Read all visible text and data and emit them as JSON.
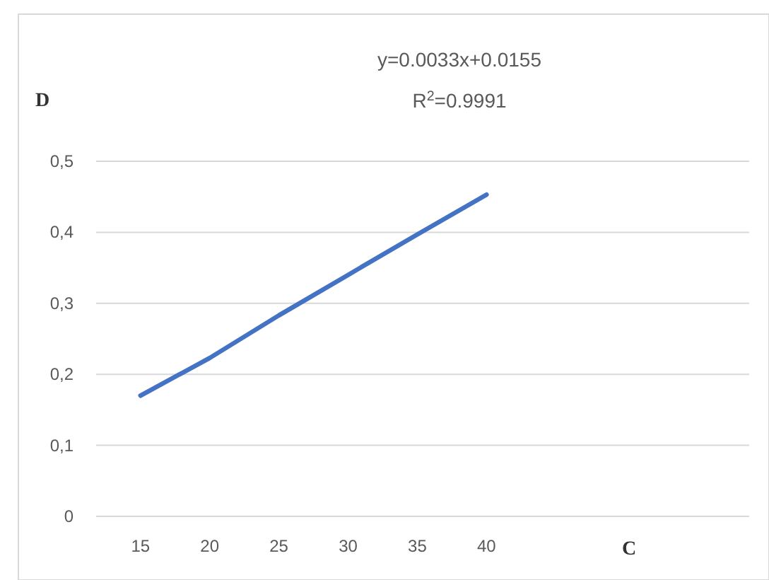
{
  "chart_data": {
    "type": "line",
    "xlabel": "C",
    "ylabel": "D",
    "annotations": [
      "y=0.0033x+0.0155",
      "R$^{2}$=0.9991"
    ],
    "x": [
      15,
      20,
      25,
      30,
      35,
      40
    ],
    "series": [
      {
        "color": "#4472c4",
        "values": [
          0.17,
          0.223,
          0.283,
          0.34,
          0.397,
          0.453
        ]
      }
    ],
    "xlim": [
      12,
      60
    ],
    "xticks": [
      15,
      20,
      25,
      30,
      35,
      40
    ],
    "ylim": [
      0,
      0.5
    ],
    "yticks": [
      {
        "value": 0,
        "label": "0"
      },
      {
        "value": 0.1,
        "label": "0,1"
      },
      {
        "value": 0.2,
        "label": "0,2"
      },
      {
        "value": 0.3,
        "label": "0,3"
      },
      {
        "value": 0.4,
        "label": "0,4"
      },
      {
        "value": 0.5,
        "label": "0,5"
      }
    ],
    "grid": "y",
    "marker": "none",
    "line_style": "solid"
  }
}
